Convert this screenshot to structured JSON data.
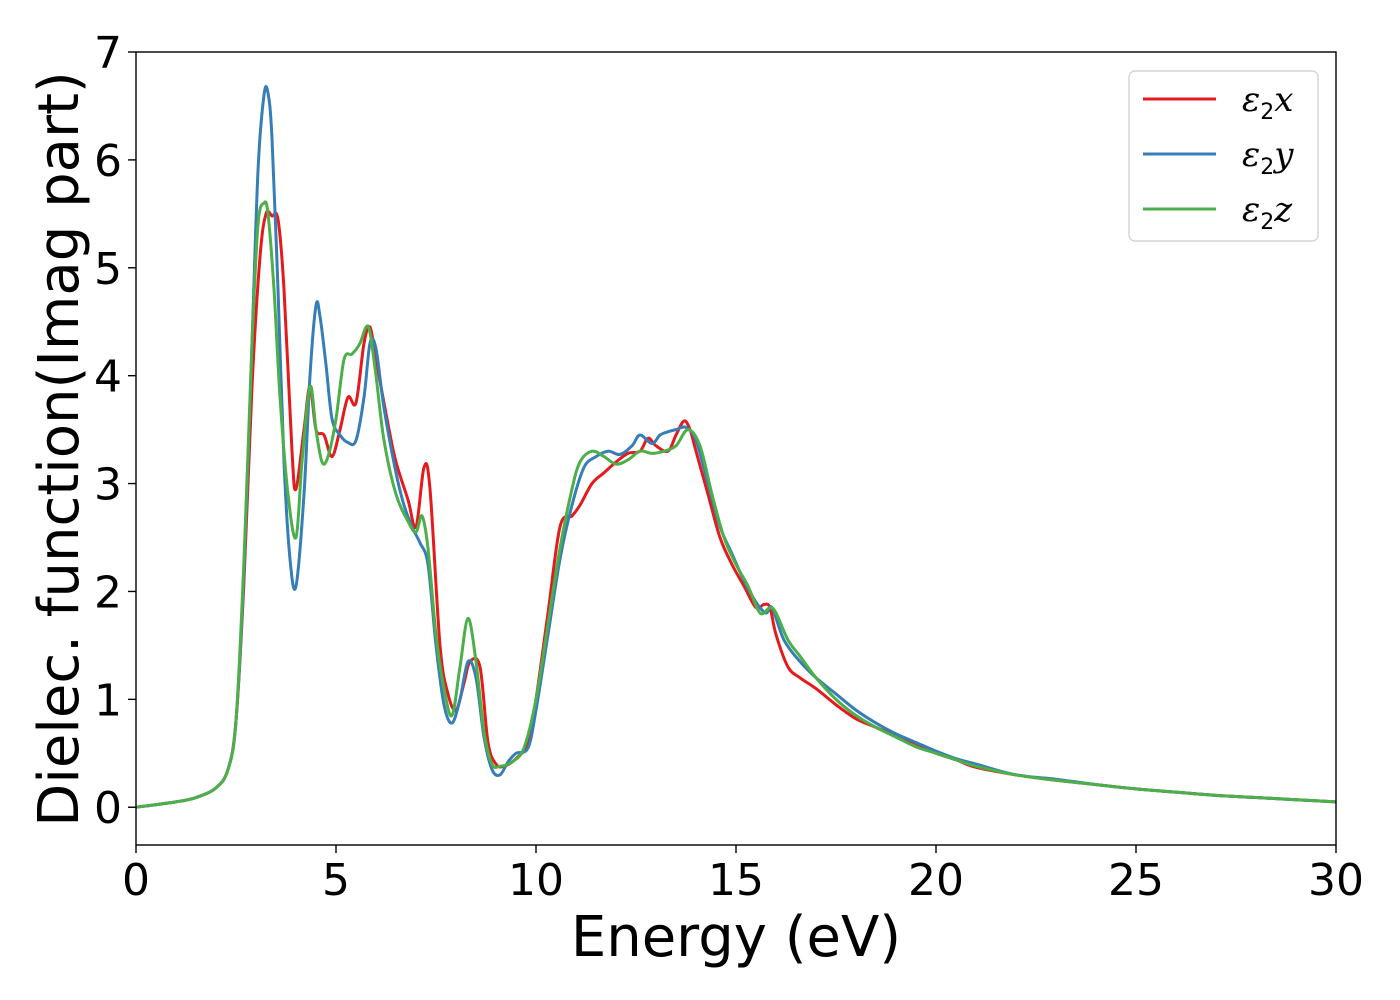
{
  "chart_data": {
    "type": "line",
    "title": "",
    "xlabel": "Energy (eV)",
    "ylabel": "Dielec. function(Imag part)",
    "xlim": [
      0,
      30
    ],
    "ylim": [
      -0.35,
      7
    ],
    "xticks": [
      0,
      5,
      10,
      15,
      20,
      25,
      30
    ],
    "xtick_labels": [
      "0",
      "5",
      "10",
      "15",
      "20",
      "25",
      "30"
    ],
    "yticks": [
      0,
      1,
      2,
      3,
      4,
      5,
      6,
      7
    ],
    "ytick_labels": [
      "0",
      "1",
      "2",
      "3",
      "4",
      "5",
      "6",
      "7"
    ],
    "grid": false,
    "legend_position": "top-right",
    "series": [
      {
        "name": "ε2x",
        "legend_base": "ε",
        "legend_sub": "2",
        "legend_var": "x",
        "color": "#e41a1c",
        "x": [
          0,
          1,
          1.5,
          2,
          2.3,
          2.5,
          2.7,
          2.9,
          3.1,
          3.25,
          3.4,
          3.55,
          3.7,
          3.9,
          4.0,
          4.2,
          4.35,
          4.5,
          4.7,
          4.9,
          5.1,
          5.3,
          5.5,
          5.7,
          5.85,
          6.0,
          6.3,
          6.5,
          6.8,
          7.0,
          7.2,
          7.35,
          7.6,
          7.8,
          8.0,
          8.2,
          8.35,
          8.6,
          8.8,
          9.0,
          9.2,
          9.5,
          9.8,
          10.0,
          10.3,
          10.6,
          10.9,
          11.1,
          11.4,
          11.7,
          12.0,
          12.3,
          12.6,
          12.8,
          13.0,
          13.3,
          13.5,
          13.7,
          13.85,
          14.0,
          14.3,
          14.6,
          14.9,
          15.2,
          15.5,
          15.7,
          15.85,
          16.0,
          16.3,
          16.6,
          17.0,
          17.5,
          18.0,
          18.5,
          19.0,
          19.5,
          20.0,
          20.5,
          21.0,
          22.0,
          23.0,
          24.0,
          25.0,
          26.0,
          27.0,
          28.0,
          29.0,
          30.0
        ],
        "y": [
          0.0,
          0.05,
          0.09,
          0.18,
          0.35,
          0.8,
          2.1,
          3.9,
          5.1,
          5.5,
          5.48,
          5.45,
          4.8,
          3.3,
          2.95,
          3.5,
          3.9,
          3.5,
          3.45,
          3.25,
          3.5,
          3.8,
          3.75,
          4.3,
          4.45,
          4.15,
          3.55,
          3.2,
          2.85,
          2.6,
          3.15,
          2.95,
          1.5,
          1.05,
          0.9,
          1.15,
          1.35,
          1.3,
          0.6,
          0.4,
          0.38,
          0.45,
          0.6,
          1.0,
          1.8,
          2.6,
          2.7,
          2.8,
          3.0,
          3.1,
          3.2,
          3.28,
          3.3,
          3.42,
          3.35,
          3.3,
          3.45,
          3.58,
          3.5,
          3.3,
          2.9,
          2.5,
          2.25,
          2.05,
          1.85,
          1.88,
          1.85,
          1.6,
          1.3,
          1.2,
          1.1,
          0.95,
          0.82,
          0.74,
          0.66,
          0.59,
          0.5,
          0.44,
          0.37,
          0.3,
          0.25,
          0.21,
          0.17,
          0.14,
          0.11,
          0.09,
          0.07,
          0.05
        ]
      },
      {
        "name": "ε2y",
        "legend_base": "ε",
        "legend_sub": "2",
        "legend_var": "y",
        "color": "#377eb8",
        "x": [
          0,
          1,
          1.5,
          2,
          2.3,
          2.5,
          2.7,
          2.9,
          3.05,
          3.2,
          3.3,
          3.4,
          3.55,
          3.7,
          3.85,
          4.0,
          4.2,
          4.35,
          4.5,
          4.6,
          4.75,
          4.9,
          5.1,
          5.3,
          5.5,
          5.7,
          5.85,
          6.0,
          6.2,
          6.5,
          6.7,
          6.9,
          7.1,
          7.3,
          7.5,
          7.7,
          7.9,
          8.1,
          8.3,
          8.5,
          8.7,
          8.9,
          9.1,
          9.3,
          9.5,
          9.8,
          10.0,
          10.3,
          10.6,
          10.9,
          11.2,
          11.5,
          11.8,
          12.1,
          12.4,
          12.6,
          12.9,
          13.1,
          13.3,
          13.5,
          13.75,
          14.0,
          14.3,
          14.6,
          14.9,
          15.2,
          15.5,
          15.75,
          15.9,
          16.2,
          16.6,
          17.0,
          17.5,
          18.0,
          18.5,
          19.0,
          19.5,
          20.0,
          20.5,
          21.0,
          22.0,
          23.0,
          24.0,
          25.0,
          26.0,
          27.0,
          28.0,
          29.0,
          30.0
        ],
        "y": [
          0.0,
          0.05,
          0.09,
          0.18,
          0.35,
          0.8,
          2.2,
          4.3,
          5.9,
          6.6,
          6.62,
          6.2,
          4.8,
          3.2,
          2.3,
          2.05,
          2.9,
          4.0,
          4.65,
          4.55,
          4.1,
          3.6,
          3.45,
          3.38,
          3.4,
          3.8,
          4.3,
          4.25,
          3.7,
          3.1,
          2.8,
          2.6,
          2.45,
          2.25,
          1.5,
          0.95,
          0.78,
          1.0,
          1.35,
          1.2,
          0.65,
          0.35,
          0.3,
          0.42,
          0.5,
          0.55,
          0.9,
          1.6,
          2.3,
          2.8,
          3.15,
          3.25,
          3.3,
          3.27,
          3.35,
          3.45,
          3.37,
          3.45,
          3.48,
          3.5,
          3.52,
          3.4,
          3.0,
          2.6,
          2.35,
          2.1,
          1.9,
          1.8,
          1.85,
          1.55,
          1.35,
          1.2,
          1.05,
          0.9,
          0.78,
          0.68,
          0.6,
          0.52,
          0.45,
          0.4,
          0.3,
          0.26,
          0.21,
          0.17,
          0.14,
          0.11,
          0.09,
          0.07,
          0.05
        ]
      },
      {
        "name": "ε2z",
        "legend_base": "ε",
        "legend_sub": "2",
        "legend_var": "z",
        "color": "#4daf4a",
        "x": [
          0,
          1,
          1.5,
          2,
          2.3,
          2.5,
          2.7,
          2.9,
          3.05,
          3.2,
          3.3,
          3.45,
          3.6,
          3.8,
          4.0,
          4.15,
          4.35,
          4.5,
          4.65,
          4.8,
          5.0,
          5.2,
          5.4,
          5.6,
          5.75,
          5.85,
          6.0,
          6.2,
          6.5,
          6.8,
          7.0,
          7.15,
          7.3,
          7.5,
          7.7,
          7.9,
          8.1,
          8.3,
          8.5,
          8.7,
          8.9,
          9.1,
          9.4,
          9.7,
          10.0,
          10.3,
          10.6,
          10.9,
          11.1,
          11.4,
          11.7,
          12.0,
          12.3,
          12.6,
          12.9,
          13.2,
          13.5,
          13.8,
          14.1,
          14.4,
          14.7,
          15.0,
          15.3,
          15.6,
          15.85,
          16.0,
          16.3,
          16.6,
          17.0,
          17.5,
          18.0,
          18.5,
          19.0,
          19.5,
          20.0,
          20.5,
          21.0,
          22.0,
          23.0,
          24.0,
          25.0,
          26.0,
          27.0,
          28.0,
          29.0,
          30.0
        ],
        "y": [
          0.0,
          0.05,
          0.09,
          0.18,
          0.35,
          0.8,
          2.3,
          4.3,
          5.4,
          5.6,
          5.5,
          4.8,
          3.8,
          2.9,
          2.5,
          3.2,
          3.9,
          3.5,
          3.2,
          3.25,
          3.6,
          4.15,
          4.2,
          4.3,
          4.45,
          4.4,
          4.0,
          3.4,
          2.9,
          2.65,
          2.55,
          2.7,
          2.4,
          1.6,
          1.1,
          0.85,
          1.3,
          1.75,
          1.35,
          0.7,
          0.4,
          0.38,
          0.42,
          0.55,
          1.0,
          1.7,
          2.4,
          2.95,
          3.2,
          3.3,
          3.25,
          3.18,
          3.22,
          3.3,
          3.28,
          3.3,
          3.35,
          3.5,
          3.35,
          2.9,
          2.5,
          2.25,
          2.05,
          1.8,
          1.85,
          1.8,
          1.55,
          1.4,
          1.2,
          1.0,
          0.85,
          0.74,
          0.65,
          0.56,
          0.5,
          0.44,
          0.38,
          0.3,
          0.25,
          0.21,
          0.17,
          0.14,
          0.11,
          0.09,
          0.07,
          0.05
        ]
      }
    ]
  }
}
